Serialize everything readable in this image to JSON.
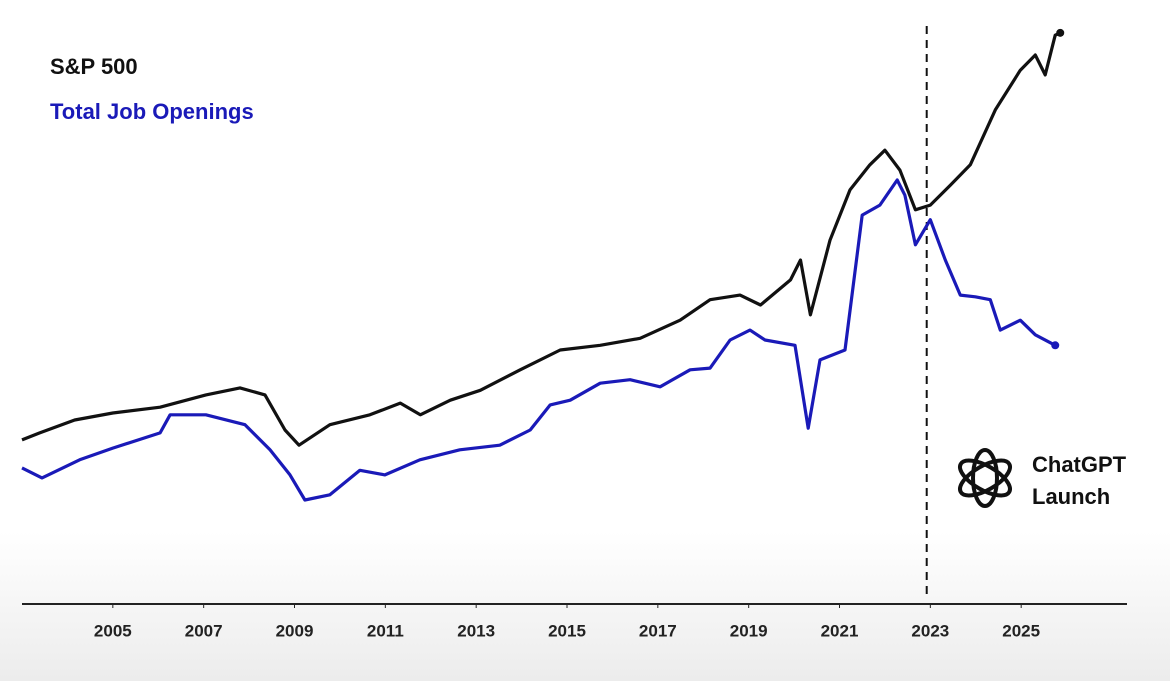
{
  "chart_data": {
    "type": "line",
    "xlim": [
      2003.0,
      2027.33
    ],
    "xticks": [
      2005,
      2007,
      2009,
      2011,
      2013,
      2015,
      2017,
      2019,
      2021,
      2023,
      2025
    ],
    "ylim": [
      0,
      100
    ],
    "grid": false,
    "series": [
      {
        "name": "S&P 500",
        "color": "#111111",
        "x": [
          2003.0,
          2003.39,
          2004.16,
          2005,
          2006.04,
          2007.05,
          2007.8,
          2008.35,
          2008.79,
          2009.1,
          2009.78,
          2010.66,
          2011.33,
          2011.77,
          2012.43,
          2013.09,
          2013.97,
          2014.85,
          2015.73,
          2016.61,
          2017.49,
          2018.15,
          2018.81,
          2019.26,
          2019.92,
          2020.14,
          2020.36,
          2020.79,
          2021.23,
          2021.67,
          2022.0,
          2022.33,
          2022.67,
          2023.0,
          2023.44,
          2023.88,
          2024.43,
          2024.98,
          2025.31,
          2025.53,
          2025.75,
          2025.86
        ],
        "values": [
          28.1,
          29.3,
          31.5,
          32.7,
          33.7,
          35.8,
          37.0,
          35.8,
          29.8,
          27.2,
          30.7,
          32.4,
          34.4,
          32.4,
          34.9,
          36.6,
          40.1,
          43.5,
          44.3,
          45.5,
          48.6,
          52.1,
          52.9,
          51.2,
          55.5,
          58.9,
          49.5,
          62.3,
          70.9,
          75.2,
          77.7,
          74.3,
          67.5,
          68.3,
          71.7,
          75.2,
          84.6,
          91.4,
          94.0,
          90.6,
          97.4,
          97.8
        ]
      },
      {
        "name": "Total Job Openings",
        "color": "#1a1ab8",
        "x": [
          2003.0,
          2003.44,
          2004.27,
          2005,
          2006.04,
          2006.26,
          2007.05,
          2007.91,
          2008.46,
          2008.9,
          2009.23,
          2009.78,
          2010.44,
          2010.99,
          2011.76,
          2012.64,
          2013.52,
          2014.19,
          2014.63,
          2015.07,
          2015.73,
          2016.39,
          2017.05,
          2017.71,
          2018.15,
          2018.59,
          2019.03,
          2019.36,
          2020.02,
          2020.31,
          2020.57,
          2021.12,
          2021.5,
          2021.89,
          2022.27,
          2022.44,
          2022.67,
          2023.0,
          2023.33,
          2023.66,
          2023.99,
          2024.32,
          2024.54,
          2024.98,
          2025.31,
          2025.75
        ],
        "values": [
          23.3,
          21.6,
          24.7,
          26.7,
          29.3,
          32.4,
          32.4,
          30.7,
          26.4,
          22.1,
          17.8,
          18.7,
          22.9,
          22.1,
          24.7,
          26.4,
          27.2,
          29.8,
          34.1,
          34.9,
          37.8,
          38.4,
          37.2,
          40.1,
          40.4,
          45.2,
          46.9,
          45.2,
          44.3,
          30.1,
          41.8,
          43.5,
          66.6,
          68.3,
          72.6,
          70.0,
          61.5,
          65.8,
          58.9,
          52.9,
          52.6,
          52.1,
          46.9,
          48.6,
          46.1,
          44.3
        ]
      }
    ],
    "annotations": [
      {
        "x": 2022.92,
        "lines": [
          "ChatGPT",
          "Launch"
        ]
      }
    ]
  }
}
